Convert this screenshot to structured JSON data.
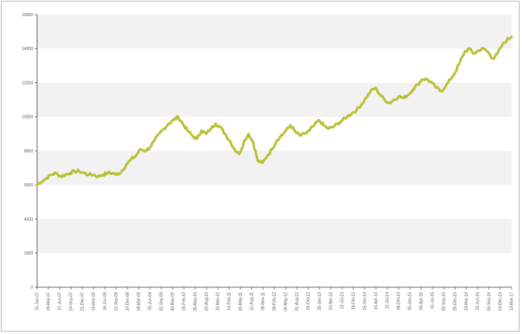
{
  "colors": {
    "line": "#b8c034",
    "band": "#f2f2f2",
    "axis": "#333333",
    "frame": "#bdbdbd"
  },
  "chart_data": {
    "type": "line",
    "title": "",
    "xlabel": "",
    "ylabel": "",
    "ylim": [
      0,
      16000
    ],
    "yticks": [
      0,
      2000,
      4000,
      6000,
      8000,
      10000,
      12000,
      14000,
      16000
    ],
    "ytick_labels": [
      "0",
      "2000",
      "4000",
      "6000",
      "8000",
      "10000",
      "12000",
      "14000",
      "16000"
    ],
    "grid": "alternating horizontal bands",
    "legend": "none",
    "x_tick_labels": [
      "01-Jan-07",
      "30-Mar-07",
      "27-Jun-07",
      "24-Sep-07",
      "21-Dec-07",
      "19-Mar-08",
      "16-Jun-08",
      "12-Sep-08",
      "10-Dec-08",
      "09-Mar-09",
      "05-Jun-09",
      "02-Sep-09",
      "30-Nov-09",
      "26-Feb-10",
      "26-May-10",
      "23-Aug-10",
      "19-Nov-10",
      "16-Feb-11",
      "16-May-11",
      "12-Aug-11",
      "09-Nov-11",
      "06-Feb-12",
      "04-May-12",
      "01-Aug-12",
      "29-Oct-12",
      "25-Jan-13",
      "24-Apr-13",
      "22-Jul-13",
      "18-Oct-13",
      "15-Jan-14",
      "14-Apr-14",
      "11-Jul-14",
      "08-Oct-14",
      "05-Jan-15",
      "03-Apr-15",
      "01-Jul-15",
      "28-Sep-15",
      "25-Dec-15",
      "23-Mar-16",
      "20-Jun-16",
      "16-Sep-16",
      "14-Dec-16",
      "13-Mar-17"
    ],
    "series": [
      {
        "values": [
          6000,
          6200,
          6400,
          6600,
          6700,
          6500,
          6600,
          6700,
          6800,
          6800,
          6700,
          6600,
          6600,
          6500,
          6600,
          6700,
          6700,
          6600,
          6800,
          7200,
          7500,
          7700,
          8100,
          8000,
          8200,
          8600,
          9000,
          9300,
          9600,
          9800,
          10000,
          9600,
          9200,
          8900,
          8700,
          9200,
          9000,
          9300,
          9600,
          9400,
          9000,
          8600,
          8100,
          7800,
          8500,
          9000,
          8500,
          7400,
          7300,
          7700,
          8100,
          8600,
          8900,
          9200,
          9500,
          9100,
          8900,
          9000,
          9200,
          9500,
          9800,
          9500,
          9300,
          9400,
          9600,
          9800,
          10000,
          10200,
          10400,
          10700,
          11100,
          11500,
          11700,
          11300,
          11000,
          10800,
          11000,
          11200,
          11100,
          11300,
          11600,
          11900,
          12200,
          12200,
          12000,
          11700,
          11500,
          11800,
          12200,
          12600,
          13200,
          13800,
          14000,
          13700,
          13900,
          14000,
          13800,
          13400,
          13700,
          14200,
          14500,
          14700
        ]
      }
    ]
  }
}
